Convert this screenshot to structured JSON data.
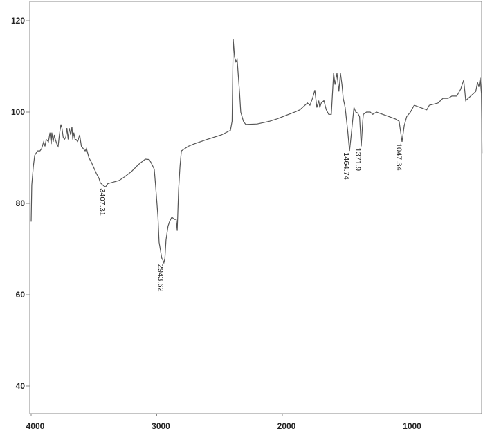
{
  "chart_data": {
    "type": "line",
    "title": "",
    "xlabel": "",
    "ylabel": "",
    "xlim": [
      4000,
      400
    ],
    "ylim": [
      33.5,
      124.5
    ],
    "x_reversed": true,
    "grid": false,
    "line_color": "#555555",
    "x_ticks": [
      4000,
      3000,
      2000,
      1000
    ],
    "x_tick_labels": [
      "4000",
      "3000",
      "2000",
      "1000"
    ],
    "y_ticks": [
      40,
      60,
      80,
      100,
      120
    ],
    "y_tick_labels": [
      "40",
      "60",
      "80",
      "100",
      "120"
    ],
    "series": [
      {
        "x": [
          4000,
          3995,
          3983,
          3972,
          3950,
          3930,
          3917,
          3900,
          3890,
          3880,
          3862,
          3850,
          3840,
          3835,
          3825,
          3815,
          3807,
          3795,
          3785,
          3775,
          3763,
          3755,
          3745,
          3735,
          3724,
          3715,
          3705,
          3697,
          3685,
          3675,
          3669,
          3660,
          3650,
          3642,
          3630,
          3614,
          3600,
          3585,
          3570,
          3559,
          3540,
          3520,
          3504,
          3480,
          3460,
          3449,
          3421,
          3407,
          3390,
          3366,
          3300,
          3256,
          3200,
          3146,
          3091,
          3060,
          3047,
          3020,
          3008,
          2990,
          2981,
          2960,
          2950,
          2943,
          2935,
          2926,
          2910,
          2898,
          2880,
          2859,
          2845,
          2837,
          2826,
          2815,
          2804,
          2750,
          2705,
          2600,
          2485,
          2413,
          2400,
          2391,
          2380,
          2369,
          2360,
          2353,
          2340,
          2331,
          2310,
          2292,
          2200,
          2100,
          2044,
          1950,
          1900,
          1860,
          1840,
          1824,
          1800,
          1780,
          1760,
          1741,
          1725,
          1710,
          1702,
          1690,
          1669,
          1650,
          1631,
          1610,
          1592,
          1580,
          1565,
          1550,
          1537,
          1525,
          1515,
          1500,
          1480,
          1465,
          1455,
          1448,
          1430,
          1415,
          1400,
          1385,
          1372,
          1360,
          1355,
          1330,
          1300,
          1280,
          1250,
          1200,
          1150,
          1100,
          1070,
          1047,
          1030,
          1010,
          980,
          950,
          900,
          850,
          830,
          800,
          760,
          722,
          680,
          650,
          611,
          580,
          556,
          545,
          540,
          520,
          501,
          480,
          460,
          446,
          435,
          424,
          415,
          410
        ],
        "y": [
          76,
          84,
          88,
          90.5,
          91.5,
          91.5,
          92,
          93.5,
          92.5,
          94,
          93.5,
          95.5,
          93,
          95.5,
          93.5,
          95,
          94,
          93,
          92.5,
          95,
          97.3,
          96.5,
          94.5,
          94,
          94.5,
          96.5,
          94,
          96.5,
          95,
          96.8,
          94,
          95.5,
          94,
          94,
          93.5,
          95,
          92.5,
          92,
          91.5,
          92,
          90,
          89,
          88,
          86.5,
          85.5,
          84.5,
          83.8,
          83.6,
          84.3,
          84.5,
          85,
          85.8,
          87,
          88.5,
          89.7,
          89.6,
          89,
          87.5,
          83.6,
          77,
          71.5,
          68,
          67.5,
          67,
          68,
          72,
          75,
          76,
          77,
          76.5,
          76.5,
          74,
          83,
          88,
          91.5,
          92.5,
          93,
          94,
          95,
          96,
          98,
          116,
          112,
          111,
          111.5,
          109,
          104,
          100,
          98,
          97.3,
          97.4,
          98,
          98.5,
          99.5,
          100,
          100.5,
          101,
          101.4,
          102,
          101.5,
          103,
          104.8,
          101,
          102.5,
          101,
          102,
          102.5,
          100.5,
          99.5,
          99.5,
          108.5,
          106,
          108.5,
          104.5,
          108.5,
          106,
          103,
          101,
          96,
          91.5,
          94,
          96,
          101,
          100,
          99.8,
          99,
          92.5,
          98,
          99.5,
          100,
          100,
          99.5,
          100,
          99.5,
          99,
          98.5,
          98,
          93.5,
          97,
          99,
          100,
          101.5,
          101,
          100.5,
          101.5,
          101.7,
          102,
          103,
          103,
          103.5,
          103.5,
          105,
          107,
          104,
          102.5,
          103,
          103.5,
          104,
          104.5,
          106.5,
          105.5,
          107.5,
          104,
          91
        ]
      }
    ],
    "peak_labels": [
      {
        "x": 3407.31,
        "y": 83.6,
        "text": "3407.31"
      },
      {
        "x": 2943.62,
        "y": 67,
        "text": "2943.62"
      },
      {
        "x": 1464.74,
        "y": 91.5,
        "text": "1464.74"
      },
      {
        "x": 1371.9,
        "y": 92.5,
        "text": "1371.9"
      },
      {
        "x": 1047.34,
        "y": 93.5,
        "text": "1047.34"
      }
    ]
  }
}
